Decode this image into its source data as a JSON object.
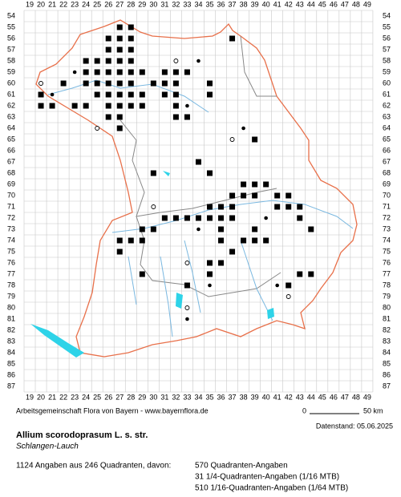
{
  "map": {
    "x_labels": [
      19,
      20,
      21,
      22,
      23,
      24,
      25,
      26,
      27,
      28,
      29,
      30,
      31,
      32,
      33,
      34,
      35,
      36,
      37,
      38,
      39,
      40,
      41,
      42,
      43,
      44,
      45,
      46,
      47,
      48,
      49
    ],
    "y_labels": [
      54,
      55,
      56,
      57,
      58,
      59,
      60,
      61,
      62,
      63,
      64,
      65,
      66,
      67,
      68,
      69,
      70,
      71,
      72,
      73,
      74,
      75,
      76,
      77,
      78,
      79,
      80,
      81,
      82,
      83,
      84,
      85,
      86,
      87
    ],
    "records": [
      {
        "col": 27,
        "row": 55,
        "kind": "square"
      },
      {
        "col": 28,
        "row": 55,
        "kind": "square"
      },
      {
        "col": 26,
        "row": 56,
        "kind": "square"
      },
      {
        "col": 27,
        "row": 56,
        "kind": "square"
      },
      {
        "col": 28,
        "row": 56,
        "kind": "square"
      },
      {
        "col": 37,
        "row": 56,
        "kind": "square"
      },
      {
        "col": 26,
        "row": 57,
        "kind": "square"
      },
      {
        "col": 27,
        "row": 57,
        "kind": "square"
      },
      {
        "col": 28,
        "row": 57,
        "kind": "square"
      },
      {
        "col": 24,
        "row": 58,
        "kind": "square"
      },
      {
        "col": 25,
        "row": 58,
        "kind": "square"
      },
      {
        "col": 26,
        "row": 58,
        "kind": "square"
      },
      {
        "col": 27,
        "row": 58,
        "kind": "square"
      },
      {
        "col": 28,
        "row": 58,
        "kind": "square"
      },
      {
        "col": 32,
        "row": 58,
        "kind": "circle"
      },
      {
        "col": 34,
        "row": 58,
        "kind": "dot"
      },
      {
        "col": 23,
        "row": 59,
        "kind": "dot"
      },
      {
        "col": 24,
        "row": 59,
        "kind": "square"
      },
      {
        "col": 25,
        "row": 59,
        "kind": "square"
      },
      {
        "col": 26,
        "row": 59,
        "kind": "square"
      },
      {
        "col": 27,
        "row": 59,
        "kind": "square"
      },
      {
        "col": 28,
        "row": 59,
        "kind": "square"
      },
      {
        "col": 29,
        "row": 59,
        "kind": "square"
      },
      {
        "col": 31,
        "row": 59,
        "kind": "square"
      },
      {
        "col": 32,
        "row": 59,
        "kind": "square"
      },
      {
        "col": 33,
        "row": 59,
        "kind": "square"
      },
      {
        "col": 20,
        "row": 60,
        "kind": "circle"
      },
      {
        "col": 22,
        "row": 60,
        "kind": "square"
      },
      {
        "col": 24,
        "row": 60,
        "kind": "square"
      },
      {
        "col": 25,
        "row": 60,
        "kind": "square"
      },
      {
        "col": 26,
        "row": 60,
        "kind": "square"
      },
      {
        "col": 27,
        "row": 60,
        "kind": "square"
      },
      {
        "col": 28,
        "row": 60,
        "kind": "square"
      },
      {
        "col": 30,
        "row": 60,
        "kind": "square"
      },
      {
        "col": 31,
        "row": 60,
        "kind": "square"
      },
      {
        "col": 32,
        "row": 60,
        "kind": "square"
      },
      {
        "col": 35,
        "row": 60,
        "kind": "square"
      },
      {
        "col": 20,
        "row": 61,
        "kind": "square"
      },
      {
        "col": 21,
        "row": 61,
        "kind": "dot"
      },
      {
        "col": 25,
        "row": 61,
        "kind": "square"
      },
      {
        "col": 26,
        "row": 61,
        "kind": "square"
      },
      {
        "col": 27,
        "row": 61,
        "kind": "square"
      },
      {
        "col": 28,
        "row": 61,
        "kind": "square"
      },
      {
        "col": 29,
        "row": 61,
        "kind": "square"
      },
      {
        "col": 31,
        "row": 61,
        "kind": "square"
      },
      {
        "col": 32,
        "row": 61,
        "kind": "square"
      },
      {
        "col": 35,
        "row": 61,
        "kind": "square"
      },
      {
        "col": 20,
        "row": 62,
        "kind": "square"
      },
      {
        "col": 21,
        "row": 62,
        "kind": "square"
      },
      {
        "col": 23,
        "row": 62,
        "kind": "square"
      },
      {
        "col": 24,
        "row": 62,
        "kind": "square"
      },
      {
        "col": 26,
        "row": 62,
        "kind": "square"
      },
      {
        "col": 27,
        "row": 62,
        "kind": "square"
      },
      {
        "col": 28,
        "row": 62,
        "kind": "square"
      },
      {
        "col": 29,
        "row": 62,
        "kind": "square"
      },
      {
        "col": 32,
        "row": 62,
        "kind": "square"
      },
      {
        "col": 33,
        "row": 62,
        "kind": "dot"
      },
      {
        "col": 26,
        "row": 63,
        "kind": "square"
      },
      {
        "col": 27,
        "row": 63,
        "kind": "square"
      },
      {
        "col": 32,
        "row": 63,
        "kind": "square"
      },
      {
        "col": 33,
        "row": 63,
        "kind": "square"
      },
      {
        "col": 25,
        "row": 64,
        "kind": "circle"
      },
      {
        "col": 27,
        "row": 64,
        "kind": "square"
      },
      {
        "col": 38,
        "row": 64,
        "kind": "dot"
      },
      {
        "col": 39,
        "row": 65,
        "kind": "square"
      },
      {
        "col": 37,
        "row": 65,
        "kind": "circle"
      },
      {
        "col": 34,
        "row": 67,
        "kind": "square"
      },
      {
        "col": 30,
        "row": 68,
        "kind": "square"
      },
      {
        "col": 35,
        "row": 68,
        "kind": "square"
      },
      {
        "col": 38,
        "row": 69,
        "kind": "square"
      },
      {
        "col": 39,
        "row": 69,
        "kind": "square"
      },
      {
        "col": 40,
        "row": 69,
        "kind": "square"
      },
      {
        "col": 37,
        "row": 70,
        "kind": "square"
      },
      {
        "col": 38,
        "row": 70,
        "kind": "square"
      },
      {
        "col": 39,
        "row": 70,
        "kind": "square"
      },
      {
        "col": 41,
        "row": 70,
        "kind": "square"
      },
      {
        "col": 42,
        "row": 70,
        "kind": "square"
      },
      {
        "col": 30,
        "row": 71,
        "kind": "circle"
      },
      {
        "col": 35,
        "row": 71,
        "kind": "square"
      },
      {
        "col": 36,
        "row": 71,
        "kind": "square"
      },
      {
        "col": 37,
        "row": 71,
        "kind": "square"
      },
      {
        "col": 41,
        "row": 71,
        "kind": "square"
      },
      {
        "col": 42,
        "row": 71,
        "kind": "square"
      },
      {
        "col": 43,
        "row": 71,
        "kind": "square"
      },
      {
        "col": 31,
        "row": 72,
        "kind": "square"
      },
      {
        "col": 32,
        "row": 72,
        "kind": "square"
      },
      {
        "col": 33,
        "row": 72,
        "kind": "square"
      },
      {
        "col": 34,
        "row": 72,
        "kind": "square"
      },
      {
        "col": 35,
        "row": 72,
        "kind": "square"
      },
      {
        "col": 36,
        "row": 72,
        "kind": "square"
      },
      {
        "col": 37,
        "row": 72,
        "kind": "square"
      },
      {
        "col": 40,
        "row": 72,
        "kind": "dot"
      },
      {
        "col": 43,
        "row": 72,
        "kind": "square"
      },
      {
        "col": 29,
        "row": 73,
        "kind": "square"
      },
      {
        "col": 30,
        "row": 73,
        "kind": "square"
      },
      {
        "col": 34,
        "row": 73,
        "kind": "dot"
      },
      {
        "col": 36,
        "row": 73,
        "kind": "square"
      },
      {
        "col": 39,
        "row": 73,
        "kind": "square"
      },
      {
        "col": 44,
        "row": 73,
        "kind": "square"
      },
      {
        "col": 27,
        "row": 74,
        "kind": "square"
      },
      {
        "col": 28,
        "row": 74,
        "kind": "square"
      },
      {
        "col": 29,
        "row": 74,
        "kind": "square"
      },
      {
        "col": 36,
        "row": 74,
        "kind": "square"
      },
      {
        "col": 38,
        "row": 74,
        "kind": "square"
      },
      {
        "col": 39,
        "row": 74,
        "kind": "square"
      },
      {
        "col": 40,
        "row": 74,
        "kind": "square"
      },
      {
        "col": 27,
        "row": 75,
        "kind": "square"
      },
      {
        "col": 37,
        "row": 75,
        "kind": "square"
      },
      {
        "col": 33,
        "row": 76,
        "kind": "circle"
      },
      {
        "col": 35,
        "row": 76,
        "kind": "square"
      },
      {
        "col": 36,
        "row": 76,
        "kind": "square"
      },
      {
        "col": 29,
        "row": 77,
        "kind": "square"
      },
      {
        "col": 35,
        "row": 77,
        "kind": "square"
      },
      {
        "col": 43,
        "row": 77,
        "kind": "square"
      },
      {
        "col": 44,
        "row": 77,
        "kind": "square"
      },
      {
        "col": 33,
        "row": 78,
        "kind": "square"
      },
      {
        "col": 35,
        "row": 78,
        "kind": "dot"
      },
      {
        "col": 41,
        "row": 78,
        "kind": "dot"
      },
      {
        "col": 42,
        "row": 78,
        "kind": "square"
      },
      {
        "col": 42,
        "row": 79,
        "kind": "circle"
      },
      {
        "col": 33,
        "row": 80,
        "kind": "circle"
      },
      {
        "col": 33,
        "row": 81,
        "kind": "dot"
      }
    ],
    "credit": "Arbeitsgemeinschaft Flora von Bayern - www.bayernflora.de",
    "scale_start": "0",
    "scale_end": "50 km",
    "date": "Datenstand: 05.06.2025",
    "title": "Allium scorodoprasum L. s. str.",
    "common_name": "Schlangen-Lauch",
    "summary": "1124 Angaben aus 246 Quadranten, davon:",
    "breakdown": [
      "570 Quadranten-Angaben",
      "31 1/4-Quadranten-Angaben (1/16 MTB)",
      "510 1/16-Quadranten-Angaben (1/64 MTB)"
    ]
  }
}
